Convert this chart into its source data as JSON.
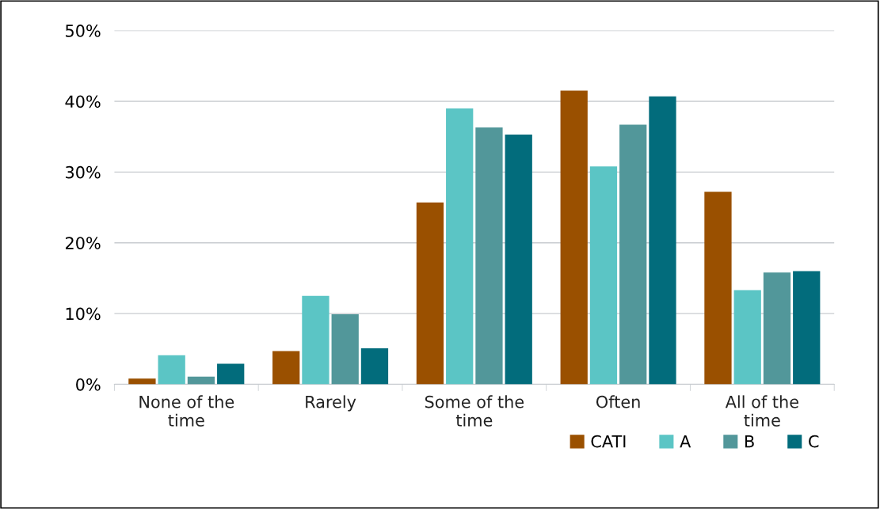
{
  "chart_data": {
    "type": "bar",
    "categories": [
      "None of the time",
      "Rarely",
      "Some of the time",
      "Often",
      "All of the time"
    ],
    "series": [
      {
        "name": "CATI",
        "color": "#9a5000",
        "values": [
          0.8,
          4.7,
          25.7,
          41.5,
          27.2
        ]
      },
      {
        "name": "A",
        "color": "#5bc5c5",
        "values": [
          4.1,
          12.5,
          39.0,
          30.8,
          13.3
        ]
      },
      {
        "name": "B",
        "color": "#52979a",
        "values": [
          1.1,
          9.9,
          36.3,
          36.7,
          15.8
        ]
      },
      {
        "name": "C",
        "color": "#026c7c",
        "values": [
          2.9,
          5.1,
          35.3,
          40.7,
          16.0
        ]
      }
    ],
    "ylim": [
      0,
      50
    ],
    "yticks": [
      {
        "value": 0,
        "label": "0%"
      },
      {
        "value": 10,
        "label": "10%"
      },
      {
        "value": 20,
        "label": "20%"
      },
      {
        "value": 30,
        "label": "30%"
      },
      {
        "value": 40,
        "label": "40%"
      },
      {
        "value": 50,
        "label": "50%"
      }
    ],
    "grid": "y",
    "legend": "bottom right"
  }
}
